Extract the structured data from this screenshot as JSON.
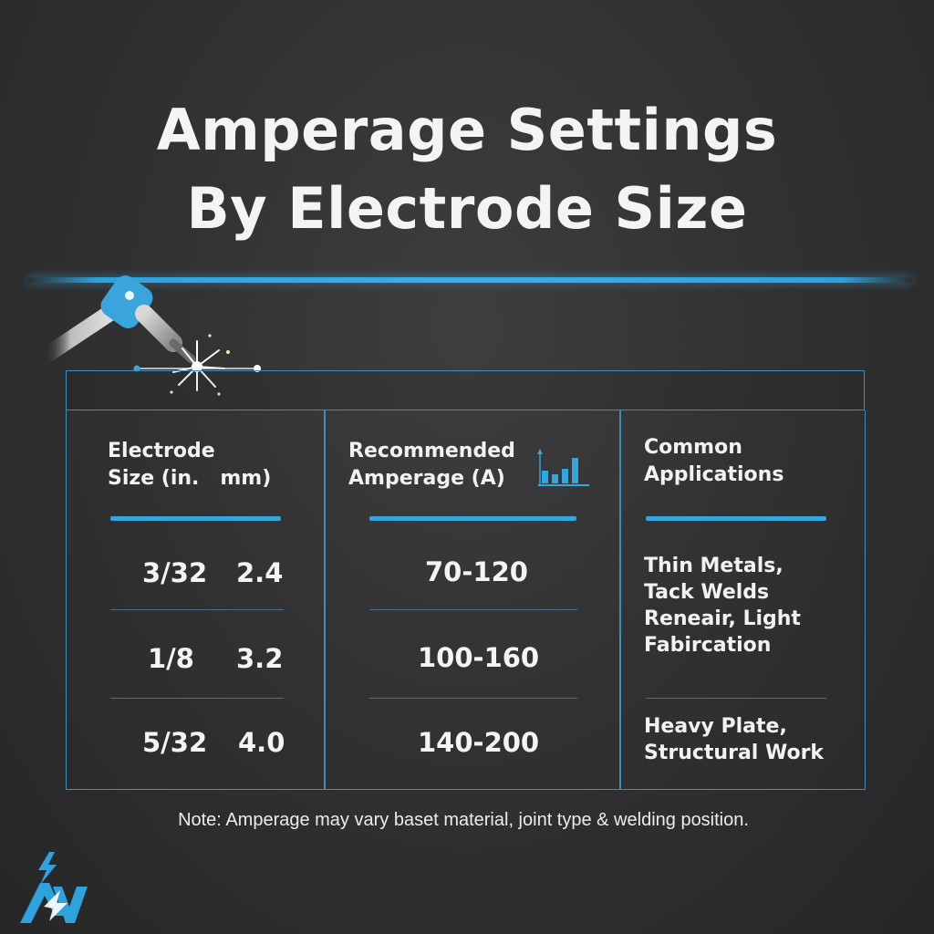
{
  "title": {
    "line1": "Amperage Settings",
    "line2": "By Electrode Size"
  },
  "table": {
    "headers": {
      "electrode": {
        "line1": "Electrode",
        "line2": "Size (in.   mm)"
      },
      "amperage": {
        "line1": "Recommended",
        "line2": "Amperage (A)",
        "icon": "bar-chart-icon"
      },
      "applications": {
        "line1": "Common",
        "line2": "Applications"
      }
    },
    "rows": [
      {
        "inch": "3/32",
        "mm": "2.4",
        "amperage": "70-120"
      },
      {
        "inch": "1/8",
        "mm": "3.2",
        "amperage": "100-160"
      },
      {
        "inch": "5/32",
        "mm": "4.0",
        "amperage": "140-200"
      }
    ],
    "applications": [
      {
        "lines": [
          "Thin Metals,",
          "Tack Welds",
          "Reneair, Light",
          "Fabircation"
        ]
      },
      {
        "lines": [
          "Heavy Plate,",
          "Structural Work"
        ]
      }
    ]
  },
  "note": "Note: Amperage may vary baset material, joint type & welding position.",
  "illustration": {
    "icon": "welding-torch-icon"
  },
  "logo": {
    "icon": "lightning-logo-icon"
  },
  "colors": {
    "accent": "#2ea2dd",
    "background": "#2f2f30",
    "border": "#3c8fbd",
    "text": "#f4f4f4"
  }
}
